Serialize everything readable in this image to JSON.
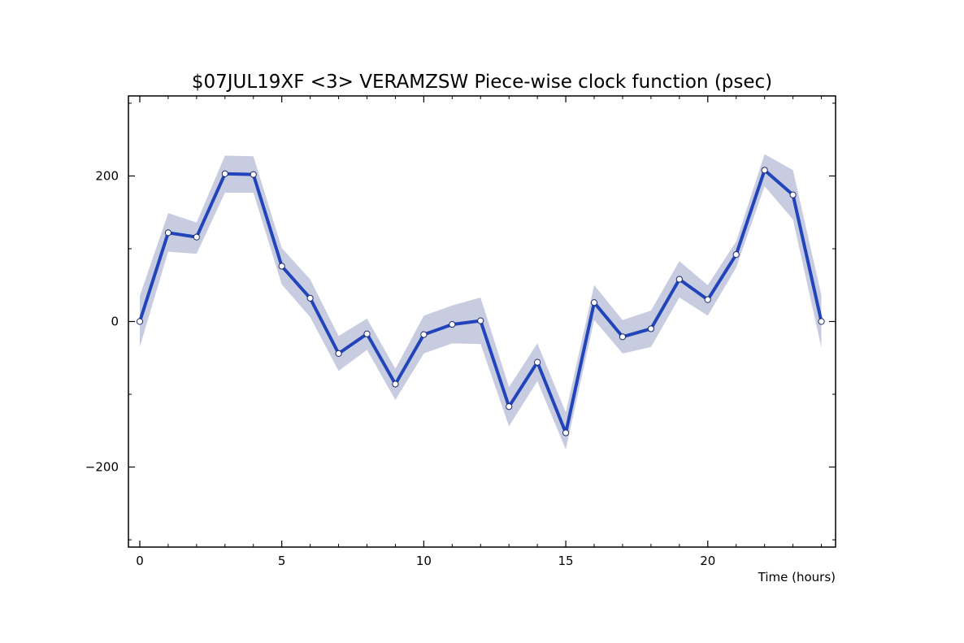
{
  "chart_data": {
    "type": "line",
    "title": "$07JUL19XF <3>  VERAMZSW  Piece-wise clock function (psec)",
    "xlabel": "Time (hours)",
    "ylabel": "",
    "xlim": [
      -0.4,
      24.5
    ],
    "ylim": [
      -310,
      310
    ],
    "x_ticks": [
      0,
      5,
      10,
      15,
      20
    ],
    "y_ticks": [
      -200,
      0,
      200
    ],
    "grid": false,
    "colors": {
      "line": "#2244bb",
      "band": "#c8cce0",
      "marker_fill": "#ffffff",
      "marker_edge": "#1a2a6a"
    },
    "series": [
      {
        "x": [
          0,
          1,
          2,
          3,
          4,
          5,
          6,
          7,
          8,
          9,
          10,
          11,
          12,
          13,
          14,
          15,
          16,
          17,
          18,
          19,
          20,
          21,
          22,
          23,
          24
        ],
        "values": [
          0,
          122,
          116,
          203,
          202,
          76,
          32,
          -44,
          -17,
          -86,
          -18,
          -4,
          1,
          -117,
          -56,
          -153,
          26,
          -21,
          -10,
          58,
          30,
          92,
          208,
          174,
          0
        ],
        "band_upper": [
          35,
          149,
          136,
          228,
          227,
          101,
          58,
          -20,
          4,
          -65,
          8,
          22,
          33,
          -90,
          -30,
          -125,
          50,
          2,
          15,
          83,
          50,
          110,
          230,
          208,
          36
        ],
        "band_lower": [
          -35,
          96,
          93,
          177,
          177,
          51,
          6,
          -68,
          -39,
          -108,
          -44,
          -30,
          -31,
          -144,
          -82,
          -176,
          2,
          -44,
          -35,
          33,
          8,
          74,
          186,
          140,
          -36
        ]
      }
    ]
  }
}
